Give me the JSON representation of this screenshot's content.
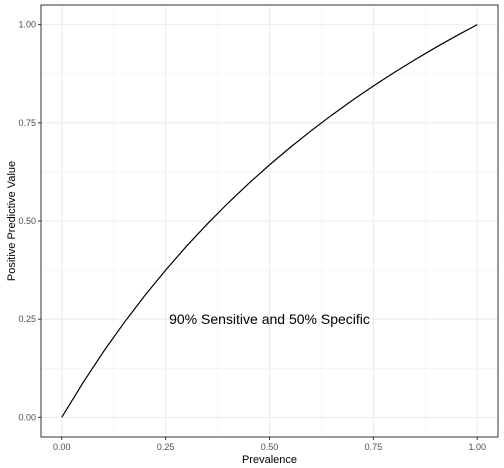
{
  "chart_data": {
    "type": "line",
    "xlabel": "Prevalence",
    "ylabel": "Positive Predictive Value",
    "xlim": [
      -0.05,
      1.05
    ],
    "ylim": [
      -0.05,
      1.05
    ],
    "x_ticks": [
      0.0,
      0.25,
      0.5,
      0.75,
      1.0
    ],
    "x_tick_labels": [
      "0.00",
      "0.25",
      "0.50",
      "0.75",
      "1.00"
    ],
    "y_ticks": [
      0.0,
      0.25,
      0.5,
      0.75,
      1.0
    ],
    "y_tick_labels": [
      "0.00",
      "0.25",
      "0.50",
      "0.75",
      "1.00"
    ],
    "grid": true,
    "annotation": {
      "text": "90% Sensitive and 50% Specific",
      "x": 0.5,
      "y": 0.25
    },
    "series": [
      {
        "color": "#000000",
        "x": [
          0.0,
          0.05,
          0.1,
          0.15,
          0.2,
          0.25,
          0.3,
          0.35,
          0.4,
          0.45,
          0.5,
          0.55,
          0.6,
          0.65,
          0.7,
          0.75,
          0.8,
          0.85,
          0.9,
          0.95,
          1.0
        ],
        "y": [
          0.0,
          0.0865,
          0.1667,
          0.2411,
          0.3103,
          0.375,
          0.4355,
          0.4922,
          0.5455,
          0.5956,
          0.6429,
          0.6875,
          0.7297,
          0.7697,
          0.8077,
          0.8438,
          0.878,
          0.9107,
          0.9419,
          0.9716,
          1.0
        ]
      }
    ]
  }
}
